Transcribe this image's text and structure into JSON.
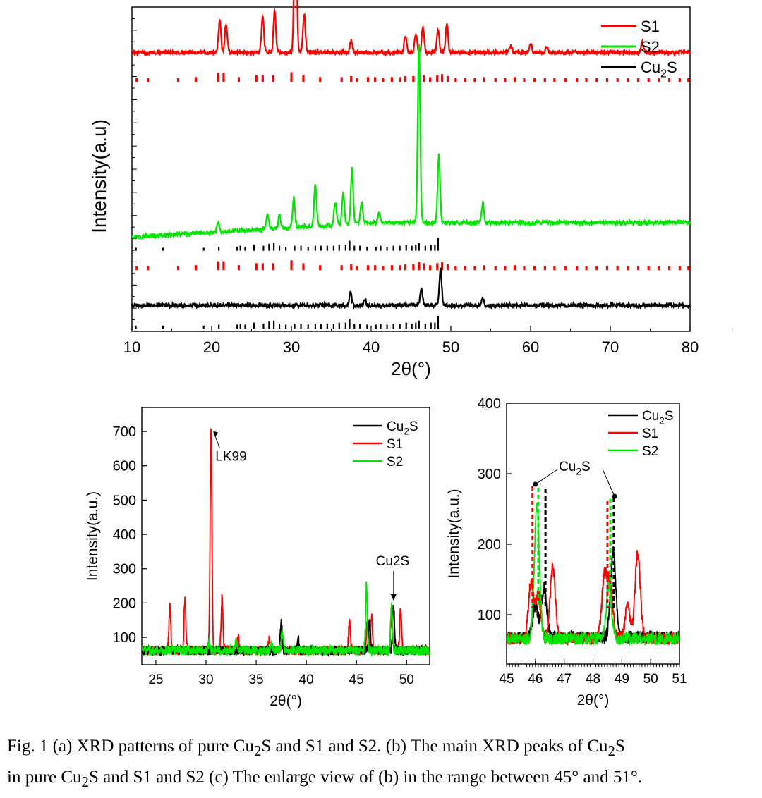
{
  "colors": {
    "S1": "#ff0000",
    "S2": "#00e600",
    "Cu2S": "#000000"
  },
  "caption": {
    "line1_a": "Fig. 1 (a) XRD patterns of pure Cu",
    "sub1": "2",
    "line1_b": "S and S1 and S2. (b) The main XRD peaks of Cu",
    "sub2": "2",
    "line1_c": "S",
    "line2_a": "in pure Cu",
    "sub3": "2",
    "line2_b": "S and S1 and S2 (c) The enlarge view of (b) in the range between 45° and 51°."
  },
  "chart_data": [
    {
      "id": "a",
      "type": "line",
      "title": "",
      "xlabel": "2θ(°)",
      "ylabel": "Intensity(a.u)",
      "xlim": [
        10,
        80
      ],
      "xticks": [
        10,
        20,
        30,
        40,
        50,
        60,
        70,
        80
      ],
      "yticks_labeled": false,
      "legend": {
        "position": "top-right",
        "entries": [
          {
            "key": "S1",
            "label": "S1"
          },
          {
            "key": "S2",
            "label": "S2"
          },
          {
            "key": "Cu2S",
            "label": "Cu",
            "sub": "2",
            "tail": "S"
          }
        ]
      },
      "series": [
        {
          "name": "S1",
          "offset": 0.86,
          "baseline": 0.0,
          "peaks": [
            [
              21.0,
              0.1
            ],
            [
              21.8,
              0.09
            ],
            [
              26.4,
              0.11
            ],
            [
              27.9,
              0.13
            ],
            [
              30.5,
              0.55
            ],
            [
              31.6,
              0.12
            ],
            [
              37.5,
              0.04
            ],
            [
              44.3,
              0.05
            ],
            [
              45.6,
              0.06
            ],
            [
              46.5,
              0.08
            ],
            [
              48.4,
              0.07
            ],
            [
              49.5,
              0.09
            ],
            [
              57.5,
              0.02
            ],
            [
              60.0,
              0.03
            ],
            [
              62.0,
              0.02
            ],
            [
              74.0,
              0.03
            ]
          ]
        },
        {
          "name": "S2",
          "offset": 0.31,
          "baseline": 0.0,
          "peaks": [
            [
              20.8,
              0.03
            ],
            [
              27.0,
              0.05
            ],
            [
              28.5,
              0.04
            ],
            [
              30.3,
              0.09
            ],
            [
              33.0,
              0.13
            ],
            [
              35.5,
              0.07
            ],
            [
              36.5,
              0.1
            ],
            [
              37.6,
              0.17
            ],
            [
              38.8,
              0.06
            ],
            [
              41.0,
              0.03
            ],
            [
              46.0,
              0.55
            ],
            [
              48.5,
              0.21
            ],
            [
              54.0,
              0.06
            ]
          ]
        },
        {
          "name": "Cu2S",
          "offset": 0.08,
          "baseline": 0.0,
          "peaks": [
            [
              37.4,
              0.04
            ],
            [
              39.2,
              0.02
            ],
            [
              46.3,
              0.05
            ],
            [
              48.7,
              0.11
            ],
            [
              54.0,
              0.02
            ]
          ]
        }
      ],
      "reference_patterns": [
        {
          "name": "S1 reference",
          "color_key": "S1",
          "y_position": 0.76,
          "positions": [
            10.6,
            12.0,
            15.8,
            18.0,
            20.8,
            21.5,
            23.4,
            25.6,
            26.4,
            27.7,
            30.0,
            31.5,
            33.6,
            36.3,
            37.5,
            38.2,
            39.6,
            40.5,
            41.5,
            42.6,
            43.6,
            44.3,
            45.3,
            46.0,
            46.6,
            47.4,
            48.3,
            48.9,
            49.6,
            50.6,
            51.8,
            53.0,
            54.2,
            55.6,
            56.8,
            58.0,
            59.2,
            60.5,
            61.8,
            63.0,
            64.4,
            65.8,
            67.0,
            68.3,
            69.6,
            70.9,
            72.2,
            73.5,
            74.8,
            76.1,
            77.4,
            78.7,
            79.8
          ],
          "heights": [
            0.4,
            0.4,
            0.4,
            0.5,
            0.9,
            0.9,
            0.5,
            0.7,
            0.7,
            0.7,
            1.0,
            0.7,
            0.5,
            0.5,
            0.6,
            0.4,
            0.5,
            0.5,
            0.4,
            0.5,
            0.5,
            0.6,
            0.6,
            0.8,
            0.7,
            0.5,
            0.7,
            0.8,
            0.6,
            0.4,
            0.4,
            0.4,
            0.5,
            0.4,
            0.4,
            0.5,
            0.4,
            0.4,
            0.4,
            0.4,
            0.4,
            0.4,
            0.4,
            0.4,
            0.4,
            0.4,
            0.4,
            0.4,
            0.4,
            0.4,
            0.4,
            0.4,
            0.4
          ]
        },
        {
          "name": "Cu2S reference (upper)",
          "color_key": "Cu2S",
          "y_position": 0.24,
          "positions": [
            10.5,
            13.9,
            19.0,
            20.9,
            23.2,
            23.6,
            24.2,
            25.3,
            26.5,
            27.2,
            27.8,
            28.5,
            29.3,
            30.4,
            31.2,
            32.1,
            33.0,
            33.7,
            34.5,
            35.3,
            36.0,
            36.8,
            37.3,
            37.9,
            38.6,
            39.5,
            40.6,
            41.2,
            42.0,
            42.8,
            43.6,
            44.4,
            45.1,
            45.6,
            46.0,
            46.8,
            47.5,
            48.0,
            48.4
          ],
          "heights": [
            0.3,
            0.3,
            0.3,
            0.4,
            0.4,
            0.5,
            0.4,
            0.6,
            0.5,
            0.7,
            0.8,
            0.5,
            0.4,
            0.5,
            0.5,
            0.4,
            0.5,
            0.5,
            0.5,
            0.5,
            0.6,
            0.6,
            1.0,
            0.5,
            0.5,
            0.4,
            0.4,
            0.5,
            0.4,
            0.5,
            0.5,
            0.6,
            0.5,
            0.6,
            0.8,
            0.5,
            0.6,
            0.6,
            1.3
          ]
        },
        {
          "name": "S1 reference (middle)",
          "color_key": "S1",
          "y_position": 0.18,
          "positions": [
            10.6,
            12.0,
            15.8,
            18.0,
            20.8,
            21.5,
            23.4,
            25.6,
            26.4,
            27.7,
            30.0,
            31.5,
            33.6,
            36.3,
            37.5,
            38.2,
            39.6,
            40.5,
            41.5,
            42.6,
            43.6,
            44.3,
            45.3,
            46.0,
            46.6,
            47.4,
            48.3,
            48.9,
            49.6,
            50.6,
            51.8,
            53.0,
            54.2,
            55.6,
            56.8,
            58.0,
            59.2,
            60.5,
            61.8,
            63.0,
            64.4,
            65.8,
            67.0,
            68.3,
            69.6,
            70.9,
            72.2,
            73.5,
            74.8,
            76.1,
            77.4,
            78.7,
            79.8
          ],
          "heights": [
            0.4,
            0.4,
            0.4,
            0.5,
            0.9,
            0.9,
            0.5,
            0.7,
            0.7,
            0.7,
            1.0,
            0.7,
            0.5,
            0.5,
            0.6,
            0.4,
            0.5,
            0.5,
            0.4,
            0.5,
            0.5,
            0.6,
            0.6,
            0.8,
            0.7,
            0.5,
            0.7,
            0.8,
            0.6,
            0.4,
            0.4,
            0.4,
            0.5,
            0.4,
            0.4,
            0.5,
            0.4,
            0.4,
            0.4,
            0.4,
            0.4,
            0.4,
            0.4,
            0.4,
            0.4,
            0.4,
            0.4,
            0.4,
            0.4,
            0.4,
            0.4,
            0.4,
            0.4
          ]
        },
        {
          "name": "Cu2S reference (lower)",
          "color_key": "Cu2S",
          "y_position": 0.0,
          "positions": [
            10.5,
            13.9,
            19.0,
            20.9,
            23.2,
            23.6,
            24.2,
            25.3,
            26.5,
            27.2,
            27.8,
            28.5,
            29.3,
            30.4,
            31.2,
            32.1,
            33.0,
            33.7,
            34.5,
            35.3,
            36.0,
            36.8,
            37.3,
            37.9,
            38.6,
            39.5,
            40.6,
            41.2,
            42.0,
            42.8,
            43.6,
            44.4,
            45.1,
            45.6,
            46.0,
            46.8,
            47.5,
            48.0,
            48.4
          ],
          "heights": [
            0.3,
            0.3,
            0.3,
            0.4,
            0.4,
            0.5,
            0.4,
            0.6,
            0.5,
            0.7,
            0.8,
            0.5,
            0.4,
            0.5,
            0.5,
            0.4,
            0.5,
            0.5,
            0.5,
            0.5,
            0.6,
            0.6,
            1.0,
            0.5,
            0.5,
            0.4,
            0.4,
            0.5,
            0.4,
            0.5,
            0.5,
            0.6,
            0.5,
            0.6,
            0.8,
            0.5,
            0.6,
            0.6,
            1.3
          ]
        }
      ]
    },
    {
      "id": "b",
      "type": "line",
      "title": "",
      "xlabel": "2θ(°)",
      "ylabel": "Intensity(a.u.)",
      "xlim": [
        23.6,
        52.3
      ],
      "ylim": [
        20,
        770
      ],
      "xticks": [
        25,
        30,
        35,
        40,
        45,
        50
      ],
      "yticks": [
        100,
        200,
        300,
        400,
        500,
        600,
        700
      ],
      "legend": {
        "position": "top-right",
        "entries": [
          {
            "key": "Cu2S",
            "label": "Cu",
            "sub": "2",
            "tail": "S"
          },
          {
            "key": "S1",
            "label": "S1"
          },
          {
            "key": "S2",
            "label": "S2"
          }
        ]
      },
      "series": [
        {
          "name": "S1",
          "baseline": 62,
          "peaks": [
            [
              26.4,
              130
            ],
            [
              27.9,
              155
            ],
            [
              30.5,
              650
            ],
            [
              31.6,
              155
            ],
            [
              33.2,
              40
            ],
            [
              36.3,
              30
            ],
            [
              37.6,
              55
            ],
            [
              44.3,
              80
            ],
            [
              46.1,
              90
            ],
            [
              46.5,
              100
            ],
            [
              48.5,
              100
            ],
            [
              49.4,
              125
            ]
          ]
        },
        {
          "name": "Cu2S",
          "baseline": 62,
          "peaks": [
            [
              37.5,
              80
            ],
            [
              39.2,
              30
            ],
            [
              46.3,
              80
            ],
            [
              48.7,
              130
            ]
          ]
        },
        {
          "name": "S2",
          "baseline": 62,
          "peaks": [
            [
              30.3,
              25
            ],
            [
              33.0,
              25
            ],
            [
              36.5,
              20
            ],
            [
              37.6,
              55
            ],
            [
              46.0,
              190
            ],
            [
              48.5,
              135
            ]
          ]
        }
      ],
      "annotations": [
        {
          "text": "LK99",
          "x": 30.5,
          "y": 705,
          "label_x": 31.5,
          "label_y": 615
        },
        {
          "text": "Cu2S",
          "x": 48.7,
          "y": 205,
          "label_x": 48.6,
          "label_y": 310
        }
      ]
    },
    {
      "id": "c",
      "type": "line",
      "title": "",
      "xlabel": "2θ(°)",
      "ylabel": "Intensity(a.u.)",
      "xlim": [
        45,
        51
      ],
      "ylim": [
        30,
        400
      ],
      "xticks": [
        45,
        46,
        47,
        48,
        49,
        50,
        51
      ],
      "yticks": [
        100,
        200,
        300,
        400
      ],
      "legend": {
        "position": "top-right",
        "entries": [
          {
            "key": "Cu2S",
            "label": "Cu",
            "sub": "2",
            "tail": "S"
          },
          {
            "key": "S1",
            "label": "S1"
          },
          {
            "key": "S2",
            "label": "S2"
          }
        ]
      },
      "series": [
        {
          "name": "Cu2S",
          "baseline": 68,
          "peaks": [
            [
              46.0,
              45
            ],
            [
              46.3,
              70
            ],
            [
              48.7,
              120
            ]
          ]
        },
        {
          "name": "S1",
          "baseline": 66,
          "peaks": [
            [
              45.85,
              80
            ],
            [
              46.1,
              60
            ],
            [
              46.6,
              100
            ],
            [
              48.4,
              90
            ],
            [
              48.6,
              75
            ],
            [
              49.2,
              45
            ],
            [
              49.55,
              120
            ]
          ]
        },
        {
          "name": "S2",
          "baseline": 66,
          "peaks": [
            [
              46.05,
              185
            ],
            [
              48.55,
              75
            ]
          ]
        }
      ],
      "dashed_markers": [
        {
          "x": 45.9,
          "top": 282,
          "color_key": "S1"
        },
        {
          "x": 46.1,
          "top": 280,
          "color_key": "S2"
        },
        {
          "x": 46.35,
          "top": 278,
          "color_key": "Cu2S"
        },
        {
          "x": 48.5,
          "top": 262,
          "color_key": "S1"
        },
        {
          "x": 48.6,
          "top": 264,
          "color_key": "S2"
        },
        {
          "x": 48.72,
          "top": 266,
          "color_key": "Cu2S"
        }
      ],
      "annotations": [
        {
          "text": "Cu",
          "sub": "2",
          "tail": "S",
          "label_x": 47.5,
          "label_y": 300,
          "targets": [
            [
              46.0,
              285
            ],
            [
              48.75,
              268
            ]
          ]
        }
      ]
    }
  ]
}
